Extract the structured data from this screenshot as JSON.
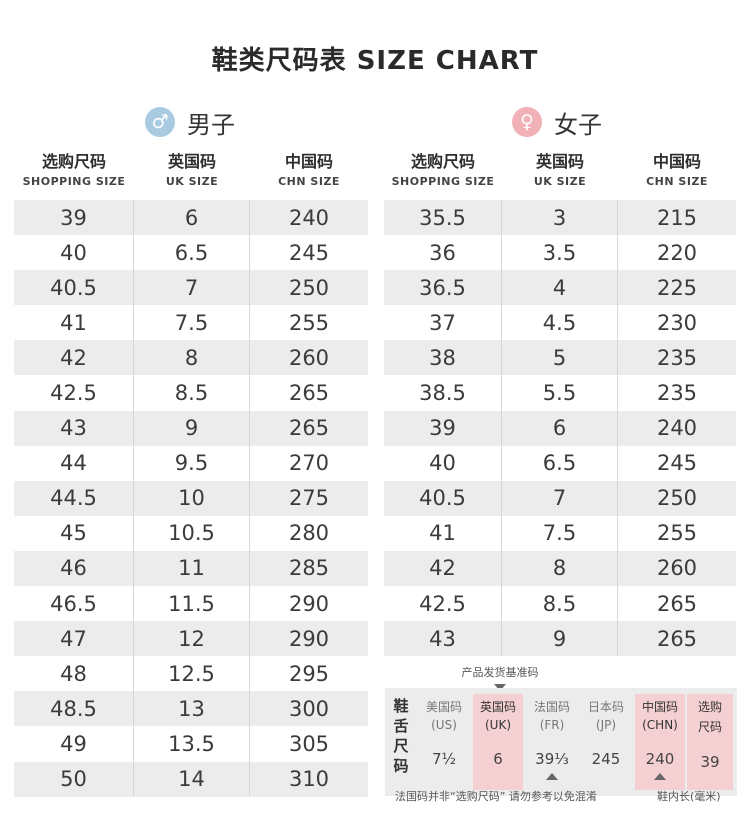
{
  "title": "鞋类尺码表 SIZE CHART",
  "men": {
    "label": "男子",
    "symbol": "♂",
    "headers": [
      {
        "cn": "选购尺码",
        "en": "SHOPPING SIZE"
      },
      {
        "cn": "英国码",
        "en": "UK SIZE"
      },
      {
        "cn": "中国码",
        "en": "CHN SIZE"
      }
    ],
    "rows": [
      [
        "39",
        "6",
        "240"
      ],
      [
        "40",
        "6.5",
        "245"
      ],
      [
        "40.5",
        "7",
        "250"
      ],
      [
        "41",
        "7.5",
        "255"
      ],
      [
        "42",
        "8",
        "260"
      ],
      [
        "42.5",
        "8.5",
        "265"
      ],
      [
        "43",
        "9",
        "265"
      ],
      [
        "44",
        "9.5",
        "270"
      ],
      [
        "44.5",
        "10",
        "275"
      ],
      [
        "45",
        "10.5",
        "280"
      ],
      [
        "46",
        "11",
        "285"
      ],
      [
        "46.5",
        "11.5",
        "290"
      ],
      [
        "47",
        "12",
        "290"
      ],
      [
        "48",
        "12.5",
        "295"
      ],
      [
        "48.5",
        "13",
        "300"
      ],
      [
        "49",
        "13.5",
        "305"
      ],
      [
        "50",
        "14",
        "310"
      ]
    ]
  },
  "women": {
    "label": "女子",
    "symbol": "♀",
    "headers": [
      {
        "cn": "选购尺码",
        "en": "SHOPPING SIZE"
      },
      {
        "cn": "英国码",
        "en": "UK SIZE"
      },
      {
        "cn": "中国码",
        "en": "CHN SIZE"
      }
    ],
    "rows": [
      [
        "35.5",
        "3",
        "215"
      ],
      [
        "36",
        "3.5",
        "220"
      ],
      [
        "36.5",
        "4",
        "225"
      ],
      [
        "37",
        "4.5",
        "230"
      ],
      [
        "38",
        "5",
        "235"
      ],
      [
        "38.5",
        "5.5",
        "235"
      ],
      [
        "39",
        "6",
        "240"
      ],
      [
        "40",
        "6.5",
        "245"
      ],
      [
        "40.5",
        "7",
        "250"
      ],
      [
        "41",
        "7.5",
        "255"
      ],
      [
        "42",
        "8",
        "260"
      ],
      [
        "42.5",
        "8.5",
        "265"
      ],
      [
        "43",
        "9",
        "265"
      ]
    ]
  },
  "reference": {
    "caption": "产品发货基准码",
    "side_label": "鞋舌尺码",
    "columns": [
      {
        "h1": "美国码",
        "h2": "(US)",
        "value": "7½"
      },
      {
        "h1": "英国码",
        "h2": "(UK)",
        "value": "6"
      },
      {
        "h1": "法国码",
        "h2": "(FR)",
        "value": "39⅓"
      },
      {
        "h1": "日本码",
        "h2": "(JP)",
        "value": "245"
      },
      {
        "h1": "中国码",
        "h2": "(CHN)",
        "value": "240"
      },
      {
        "h1": "选购",
        "h2": "尺码",
        "value": "39"
      }
    ],
    "note_left": "法国码并非“选购尺码” 请勿参考以免混淆",
    "note_right": "鞋内长(毫米)"
  }
}
